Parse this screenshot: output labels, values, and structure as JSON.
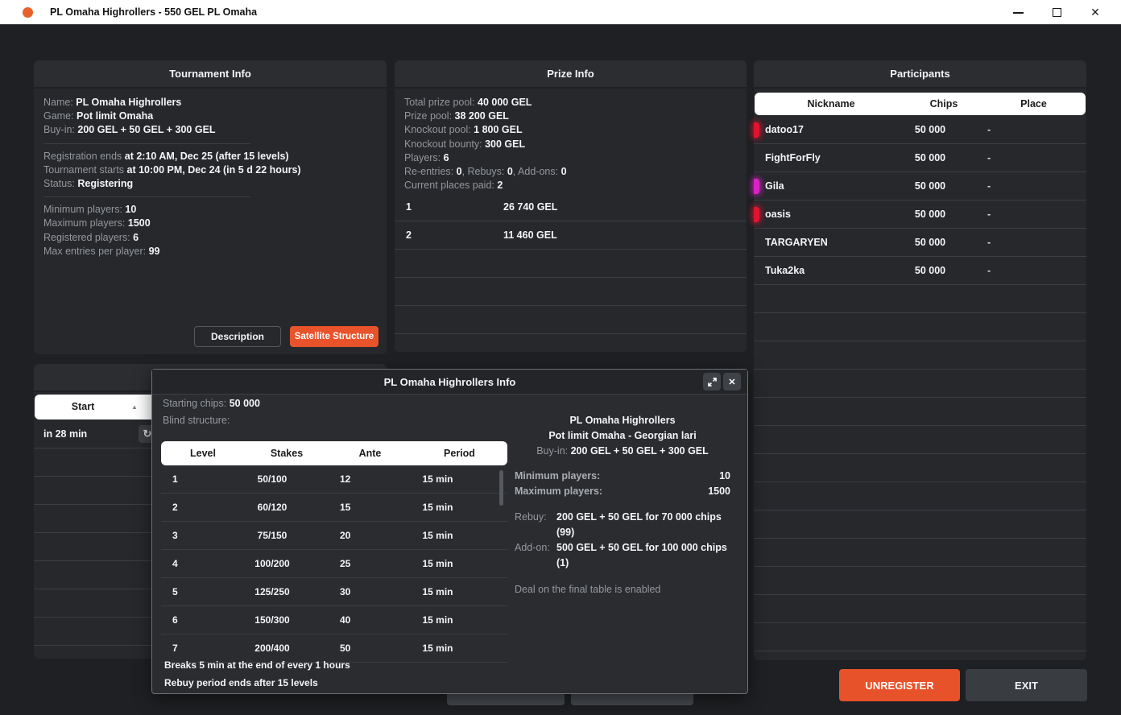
{
  "window": {
    "title": "PL Omaha Highrollers - 550 GEL PL Omaha"
  },
  "icons": {
    "app": "orange-dot",
    "minimize": "—",
    "maximize": "▢",
    "close": "✕",
    "sort_asc": "▲",
    "refresh": "↻",
    "expand": "⤢",
    "modal_close": "✕"
  },
  "colors": {
    "accent_orange": "#e8532b",
    "badge_red": "#e01430",
    "badge_magenta": "#d922c6"
  },
  "tournament_info": {
    "title": "Tournament Info",
    "lines": [
      [
        {
          "k": "l",
          "t": "Name: "
        },
        {
          "k": "v",
          "t": "PL Omaha Highrollers"
        }
      ],
      [
        {
          "k": "l",
          "t": "Game: "
        },
        {
          "k": "v",
          "t": "Pot limit Omaha"
        }
      ],
      [
        {
          "k": "l",
          "t": "Buy-in: "
        },
        {
          "k": "v",
          "t": "200 GEL + 50 GEL + 300 GEL"
        }
      ],
      "sep",
      [
        {
          "k": "l",
          "t": "Registration ends "
        },
        {
          "k": "v",
          "t": "at 2:10 AM, Dec 25 (after 15 levels)"
        }
      ],
      [
        {
          "k": "l",
          "t": "Tournament starts "
        },
        {
          "k": "v",
          "t": "at 10:00 PM, Dec 24 (in 5 d 22 hours)"
        }
      ],
      [
        {
          "k": "l",
          "t": "Status: "
        },
        {
          "k": "v",
          "t": "Registering"
        }
      ],
      "sep",
      [
        {
          "k": "l",
          "t": "Minimum players: "
        },
        {
          "k": "v",
          "t": "10"
        }
      ],
      [
        {
          "k": "l",
          "t": "Maximum players: "
        },
        {
          "k": "v",
          "t": "1500"
        }
      ],
      [
        {
          "k": "l",
          "t": "Registered players: "
        },
        {
          "k": "v",
          "t": "6"
        }
      ],
      [
        {
          "k": "l",
          "t": "Max entries per player: "
        },
        {
          "k": "v",
          "t": "99"
        }
      ]
    ],
    "description_button": "Description",
    "satellite_button": "Satellite Structure"
  },
  "prize_info": {
    "title": "Prize Info",
    "lines": [
      [
        {
          "k": "l",
          "t": "Total prize pool: "
        },
        {
          "k": "v",
          "t": "40 000 GEL"
        }
      ],
      [
        {
          "k": "l",
          "t": "Prize pool: "
        },
        {
          "k": "v",
          "t": "38 200 GEL"
        }
      ],
      [
        {
          "k": "l",
          "t": "Knockout pool: "
        },
        {
          "k": "v",
          "t": "1 800 GEL"
        }
      ],
      [
        {
          "k": "l",
          "t": "Knockout bounty: "
        },
        {
          "k": "v",
          "t": "300 GEL"
        }
      ],
      [
        {
          "k": "l",
          "t": "Players: "
        },
        {
          "k": "v",
          "t": "6"
        }
      ],
      [
        {
          "k": "l",
          "t": "Re-entries: "
        },
        {
          "k": "v",
          "t": "0"
        },
        {
          "k": "l",
          "t": ", Rebuys: "
        },
        {
          "k": "v",
          "t": "0"
        },
        {
          "k": "l",
          "t": ", Add-ons: "
        },
        {
          "k": "v",
          "t": "0"
        }
      ],
      [
        {
          "k": "l",
          "t": "Current places paid: "
        },
        {
          "k": "v",
          "t": "2"
        }
      ]
    ],
    "payouts": [
      {
        "place": "1",
        "amount": "26 740 GEL"
      },
      {
        "place": "2",
        "amount": "11 460 GEL"
      }
    ]
  },
  "participants": {
    "title": "Participants",
    "columns": [
      "Nickname",
      "Chips",
      "Place"
    ],
    "rows": [
      {
        "nickname": "datoo17",
        "chips": "50 000",
        "place": "-",
        "badge": "#e01430"
      },
      {
        "nickname": "FightForFly",
        "chips": "50 000",
        "place": "-",
        "badge": ""
      },
      {
        "nickname": "Gila",
        "chips": "50 000",
        "place": "-",
        "badge": "#d922c6"
      },
      {
        "nickname": "oasis",
        "chips": "50 000",
        "place": "-",
        "badge": "#e01430"
      },
      {
        "nickname": "TARGARYEN",
        "chips": "50 000",
        "place": "-",
        "badge": ""
      },
      {
        "nickname": "Tuka2ka",
        "chips": "50 000",
        "place": "-",
        "badge": ""
      }
    ]
  },
  "schedule": {
    "column_header": "Start",
    "sort_icon": "▲",
    "first_cell": "in 28 min",
    "refresh_icon": "↻"
  },
  "modal": {
    "title": "PL Omaha Highrollers Info",
    "close_icon": "✕",
    "starting_chips": [
      {
        "k": "l",
        "t": "Starting chips: "
      },
      {
        "k": "v",
        "t": "50 000"
      }
    ],
    "blind_structure_label": "Blind structure:",
    "blinds": {
      "columns": [
        "Level",
        "Stakes",
        "Ante",
        "Period"
      ],
      "rows": [
        {
          "level": "1",
          "stakes": "50/100",
          "ante": "12",
          "period": "15 min"
        },
        {
          "level": "2",
          "stakes": "60/120",
          "ante": "15",
          "period": "15 min"
        },
        {
          "level": "3",
          "stakes": "75/150",
          "ante": "20",
          "period": "15 min"
        },
        {
          "level": "4",
          "stakes": "100/200",
          "ante": "25",
          "period": "15 min"
        },
        {
          "level": "5",
          "stakes": "125/250",
          "ante": "30",
          "period": "15 min"
        },
        {
          "level": "6",
          "stakes": "150/300",
          "ante": "40",
          "period": "15 min"
        },
        {
          "level": "7",
          "stakes": "200/400",
          "ante": "50",
          "period": "15 min"
        }
      ]
    },
    "notes": [
      "Breaks 5 min at the end of every 1 hours",
      "Rebuy period ends after 15 levels"
    ],
    "summary": {
      "line1": "PL Omaha Highrollers",
      "line2": "Pot limit Omaha - Georgian lari",
      "buyin": [
        {
          "k": "l",
          "t": "Buy-in: "
        },
        {
          "k": "v",
          "t": "200 GEL + 50 GEL + 300 GEL"
        }
      ],
      "min_players_label": "Minimum players:",
      "min_players": "10",
      "max_players_label": "Maximum players:",
      "max_players": "1500",
      "rebuy_label": "Rebuy:",
      "rebuy_value": "200 GEL + 50 GEL for 70 000 chips (99)",
      "addon_label": "Add-on:",
      "addon_value": "500 GEL + 50 GEL for 100 000 chips (1)",
      "deal_note": "Deal on the final table is enabled"
    }
  },
  "footer": {
    "unregister": "UNREGISTER",
    "exit": "EXIT"
  }
}
